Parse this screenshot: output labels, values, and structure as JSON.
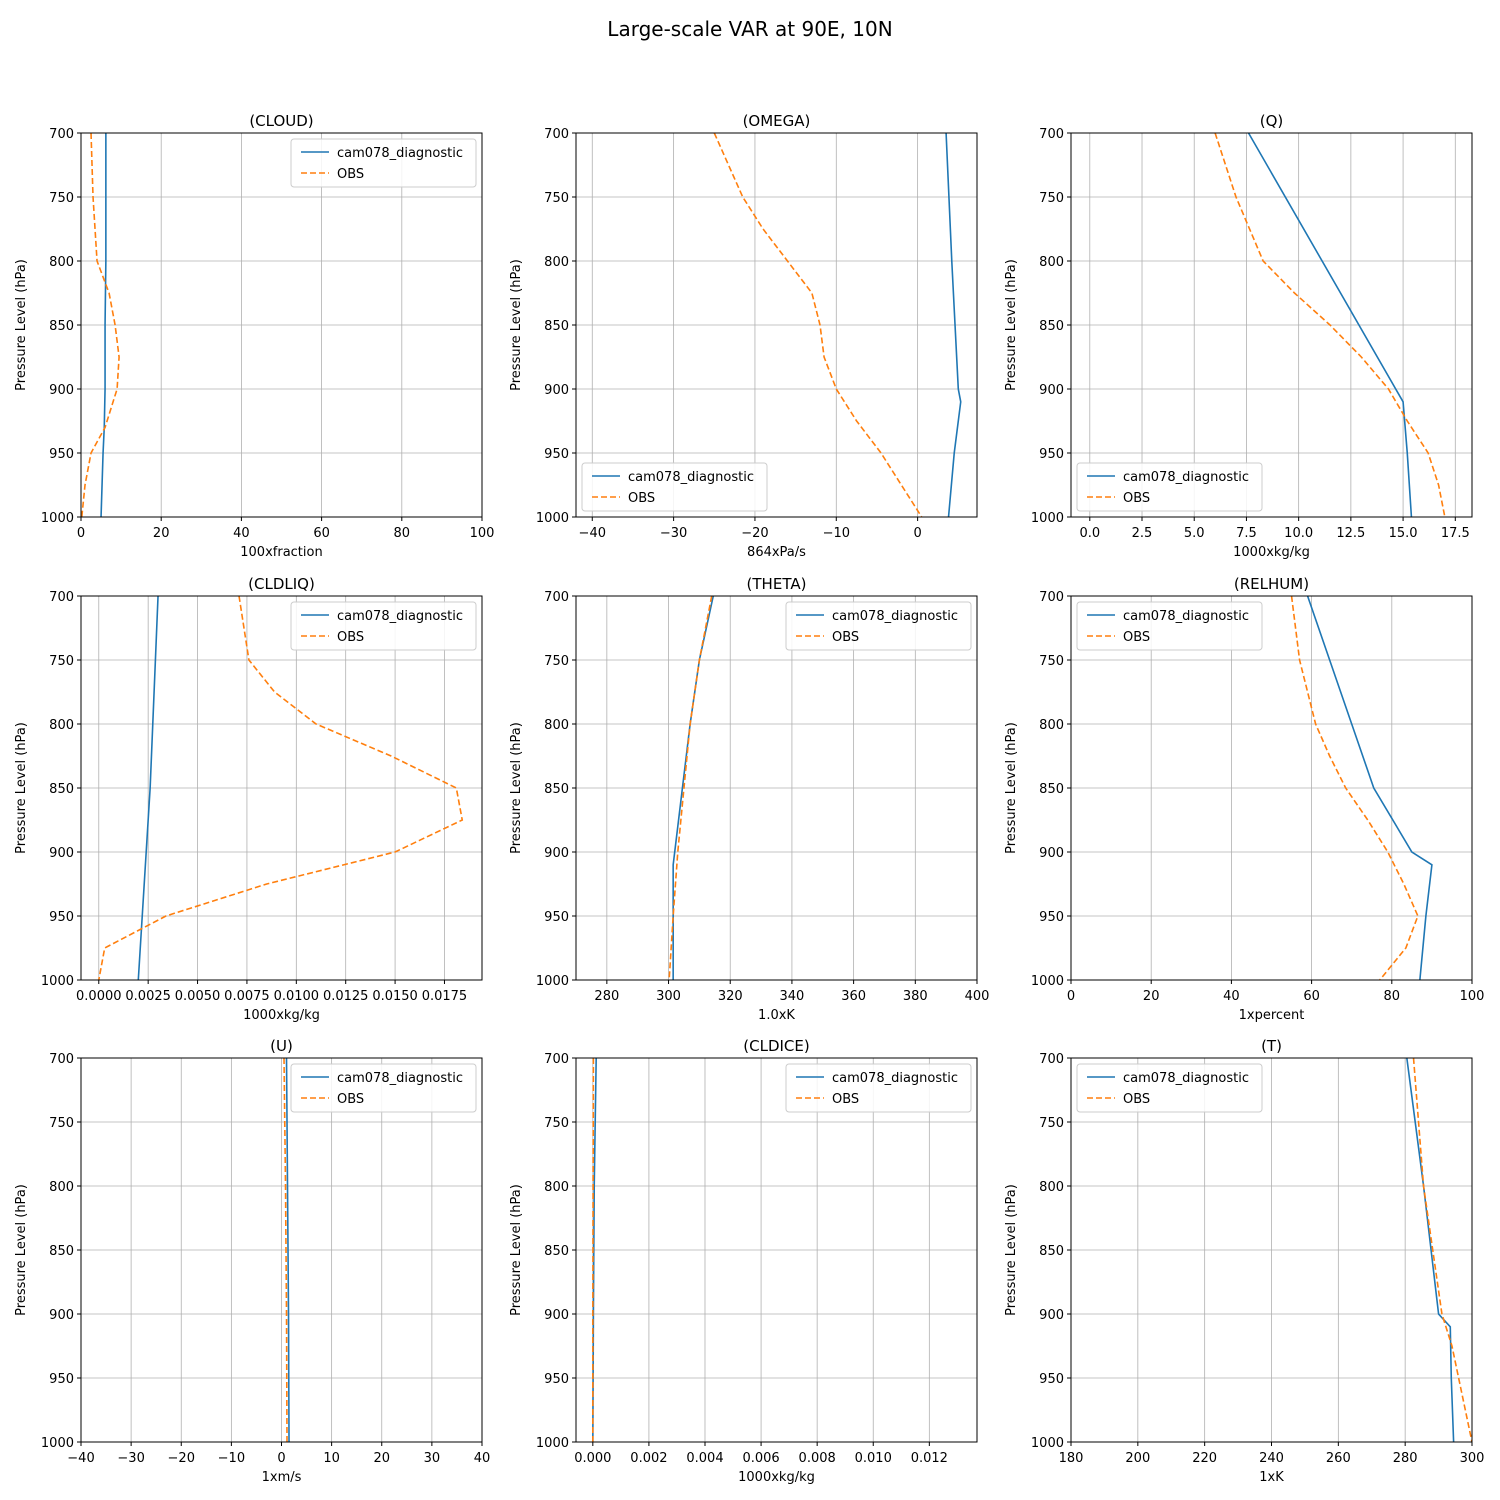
{
  "figure": {
    "title": "Large-scale VAR at 90E, 10N"
  },
  "chart_data": [
    {
      "type": "line",
      "title": "(CLOUD)",
      "xlabel": "100xfraction",
      "ylabel": "Pressure Level (hPa)",
      "xlim": [
        0,
        100
      ],
      "ylim": [
        1000,
        700
      ],
      "xticks": [
        "0",
        "20",
        "40",
        "60",
        "80",
        "100"
      ],
      "yticks": [
        "700",
        "750",
        "800",
        "850",
        "900",
        "950",
        "1000"
      ],
      "grid": true,
      "legend_loc": "upper right",
      "series": [
        {
          "name": "cam078_diagnostic",
          "color": "#1f77b4",
          "style": "solid",
          "points": [
            [
              6.2,
              700
            ],
            [
              6.2,
              750
            ],
            [
              6.2,
              800
            ],
            [
              6.0,
              850
            ],
            [
              6.0,
              900
            ],
            [
              5.8,
              930
            ],
            [
              5.5,
              950
            ],
            [
              5.0,
              1000
            ]
          ]
        },
        {
          "name": "OBS",
          "color": "#ff7f0e",
          "style": "dashed",
          "points": [
            [
              2.5,
              700
            ],
            [
              3.0,
              750
            ],
            [
              4.0,
              800
            ],
            [
              7.0,
              825
            ],
            [
              8.5,
              850
            ],
            [
              9.5,
              875
            ],
            [
              9.0,
              900
            ],
            [
              6.0,
              930
            ],
            [
              2.5,
              950
            ],
            [
              1.0,
              975
            ],
            [
              0.2,
              1000
            ]
          ]
        }
      ]
    },
    {
      "type": "line",
      "title": "(OMEGA)",
      "xlabel": "864xPa/s",
      "ylabel": "Pressure Level (hPa)",
      "xlim": [
        -42,
        7.3
      ],
      "ylim": [
        1000,
        700
      ],
      "xticks": [
        "−40",
        "−30",
        "−20",
        "−10",
        "0"
      ],
      "xtickvals": [
        -40,
        -30,
        -20,
        -10,
        0
      ],
      "yticks": [
        "700",
        "750",
        "800",
        "850",
        "900",
        "950",
        "1000"
      ],
      "grid": true,
      "legend_loc": "lower left",
      "series": [
        {
          "name": "cam078_diagnostic",
          "color": "#1f77b4",
          "style": "solid",
          "points": [
            [
              3.5,
              700
            ],
            [
              4.2,
              800
            ],
            [
              5.0,
              900
            ],
            [
              5.3,
              910
            ],
            [
              4.5,
              950
            ],
            [
              3.8,
              1000
            ]
          ]
        },
        {
          "name": "OBS",
          "color": "#ff7f0e",
          "style": "dashed",
          "points": [
            [
              -25,
              700
            ],
            [
              -21.5,
              750
            ],
            [
              -19,
              775
            ],
            [
              -16,
              800
            ],
            [
              -13,
              825
            ],
            [
              -12,
              850
            ],
            [
              -11.5,
              875
            ],
            [
              -10,
              900
            ],
            [
              -7.5,
              925
            ],
            [
              -4.5,
              950
            ],
            [
              -2,
              975
            ],
            [
              0.5,
              1000
            ]
          ]
        }
      ]
    },
    {
      "type": "line",
      "title": "(Q)",
      "xlabel": "1000xkg/kg",
      "ylabel": "Pressure Level (hPa)",
      "xlim": [
        -0.9,
        18.3
      ],
      "ylim": [
        1000,
        700
      ],
      "xticks": [
        "0.0",
        "2.5",
        "5.0",
        "7.5",
        "10.0",
        "12.5",
        "15.0",
        "17.5"
      ],
      "xtickvals": [
        0,
        2.5,
        5,
        7.5,
        10,
        12.5,
        15,
        17.5
      ],
      "yticks": [
        "700",
        "750",
        "800",
        "850",
        "900",
        "950",
        "1000"
      ],
      "grid": true,
      "legend_loc": "lower left",
      "series": [
        {
          "name": "cam078_diagnostic",
          "color": "#1f77b4",
          "style": "solid",
          "points": [
            [
              7.6,
              700
            ],
            [
              15.0,
              910
            ],
            [
              15.2,
              950
            ],
            [
              15.4,
              1000
            ]
          ]
        },
        {
          "name": "OBS",
          "color": "#ff7f0e",
          "style": "dashed",
          "points": [
            [
              6.0,
              700
            ],
            [
              7.0,
              750
            ],
            [
              8.3,
              800
            ],
            [
              9.8,
              825
            ],
            [
              11.5,
              850
            ],
            [
              13.0,
              875
            ],
            [
              14.3,
              900
            ],
            [
              15.2,
              925
            ],
            [
              16.2,
              950
            ],
            [
              16.7,
              975
            ],
            [
              17.0,
              1000
            ]
          ]
        }
      ]
    },
    {
      "type": "line",
      "title": "(CLDLIQ)",
      "xlabel": "1000xkg/kg",
      "ylabel": "Pressure Level (hPa)",
      "xlim": [
        -0.0009,
        0.0194
      ],
      "ylim": [
        1000,
        700
      ],
      "xticks": [
        "0.0000",
        "0.0025",
        "0.0050",
        "0.0075",
        "0.0100",
        "0.0125",
        "0.0150",
        "0.0175"
      ],
      "xtickvals": [
        0,
        0.0025,
        0.005,
        0.0075,
        0.01,
        0.0125,
        0.015,
        0.0175
      ],
      "yticks": [
        "700",
        "750",
        "800",
        "850",
        "900",
        "950",
        "1000"
      ],
      "grid": true,
      "legend_loc": "upper right",
      "series": [
        {
          "name": "cam078_diagnostic",
          "color": "#1f77b4",
          "style": "solid",
          "points": [
            [
              0.003,
              700
            ],
            [
              0.0026,
              850
            ],
            [
              0.0024,
              900
            ],
            [
              0.0022,
              950
            ],
            [
              0.002,
              1000
            ]
          ]
        },
        {
          "name": "OBS",
          "color": "#ff7f0e",
          "style": "dashed",
          "points": [
            [
              0.0071,
              700
            ],
            [
              0.0076,
              750
            ],
            [
              0.0089,
              775
            ],
            [
              0.011,
              800
            ],
            [
              0.0148,
              825
            ],
            [
              0.0181,
              850
            ],
            [
              0.0184,
              875
            ],
            [
              0.015,
              900
            ],
            [
              0.0085,
              925
            ],
            [
              0.0034,
              950
            ],
            [
              0.0003,
              975
            ],
            [
              0.0,
              1000
            ]
          ]
        }
      ]
    },
    {
      "type": "line",
      "title": "(THETA)",
      "xlabel": "1.0xK",
      "ylabel": "Pressure Level (hPa)",
      "xlim": [
        270,
        400
      ],
      "ylim": [
        1000,
        700
      ],
      "xticks": [
        "280",
        "300",
        "320",
        "340",
        "360",
        "380",
        "400"
      ],
      "xtickvals": [
        280,
        300,
        320,
        340,
        360,
        380,
        400
      ],
      "yticks": [
        "700",
        "750",
        "800",
        "850",
        "900",
        "950",
        "1000"
      ],
      "grid": true,
      "legend_loc": "upper right",
      "series": [
        {
          "name": "cam078_diagnostic",
          "color": "#1f77b4",
          "style": "solid",
          "points": [
            [
              314.5,
              700
            ],
            [
              310,
              750
            ],
            [
              307,
              800
            ],
            [
              304.5,
              850
            ],
            [
              301.5,
              910
            ],
            [
              301.5,
              950
            ],
            [
              301.5,
              1000
            ]
          ]
        },
        {
          "name": "OBS",
          "color": "#ff7f0e",
          "style": "dashed",
          "points": [
            [
              314,
              700
            ],
            [
              310,
              750
            ],
            [
              307,
              800
            ],
            [
              305,
              850
            ],
            [
              303,
              900
            ],
            [
              301.5,
              950
            ],
            [
              300.2,
              1000
            ]
          ]
        }
      ]
    },
    {
      "type": "line",
      "title": "(RELHUM)",
      "xlabel": "1xpercent",
      "ylabel": "Pressure Level (hPa)",
      "xlim": [
        0,
        100
      ],
      "ylim": [
        1000,
        700
      ],
      "xticks": [
        "0",
        "20",
        "40",
        "60",
        "80",
        "100"
      ],
      "xtickvals": [
        0,
        20,
        40,
        60,
        80,
        100
      ],
      "yticks": [
        "700",
        "750",
        "800",
        "850",
        "900",
        "950",
        "1000"
      ],
      "grid": true,
      "legend_loc": "upper left",
      "series": [
        {
          "name": "cam078_diagnostic",
          "color": "#1f77b4",
          "style": "solid",
          "points": [
            [
              59,
              700
            ],
            [
              64.5,
              750
            ],
            [
              70,
              800
            ],
            [
              75.5,
              850
            ],
            [
              85,
              900
            ],
            [
              90,
              910
            ],
            [
              88.5,
              950
            ],
            [
              87,
              1000
            ]
          ]
        },
        {
          "name": "OBS",
          "color": "#ff7f0e",
          "style": "dashed",
          "points": [
            [
              55,
              700
            ],
            [
              57,
              750
            ],
            [
              59,
              775
            ],
            [
              61,
              800
            ],
            [
              64.5,
              825
            ],
            [
              68.5,
              850
            ],
            [
              74,
              875
            ],
            [
              79,
              900
            ],
            [
              83,
              925
            ],
            [
              86.5,
              950
            ],
            [
              83.5,
              975
            ],
            [
              77,
              1000
            ]
          ]
        }
      ]
    },
    {
      "type": "line",
      "title": "(U)",
      "xlabel": "1xm/s",
      "ylabel": "Pressure Level (hPa)",
      "xlim": [
        -40,
        40
      ],
      "ylim": [
        1000,
        700
      ],
      "xticks": [
        "−40",
        "−30",
        "−20",
        "−10",
        "0",
        "10",
        "20",
        "30",
        "40"
      ],
      "xtickvals": [
        -40,
        -30,
        -20,
        -10,
        0,
        10,
        20,
        30,
        40
      ],
      "yticks": [
        "700",
        "750",
        "800",
        "850",
        "900",
        "950",
        "1000"
      ],
      "grid": true,
      "legend_loc": "upper right",
      "series": [
        {
          "name": "cam078_diagnostic",
          "color": "#1f77b4",
          "style": "solid",
          "points": [
            [
              1.0,
              700
            ],
            [
              1.2,
              800
            ],
            [
              1.4,
              900
            ],
            [
              1.5,
              1000
            ]
          ]
        },
        {
          "name": "OBS",
          "color": "#ff7f0e",
          "style": "dashed",
          "points": [
            [
              0.5,
              700
            ],
            [
              0.8,
              800
            ],
            [
              1.0,
              900
            ],
            [
              1.1,
              1000
            ]
          ]
        }
      ]
    },
    {
      "type": "line",
      "title": "(CLDICE)",
      "xlabel": "1000xkg/kg",
      "ylabel": "Pressure Level (hPa)",
      "xlim": [
        -0.0006,
        0.0137
      ],
      "ylim": [
        1000,
        700
      ],
      "xticks": [
        "0.000",
        "0.002",
        "0.004",
        "0.006",
        "0.008",
        "0.010",
        "0.012"
      ],
      "xtickvals": [
        0,
        0.002,
        0.004,
        0.006,
        0.008,
        0.01,
        0.012
      ],
      "yticks": [
        "700",
        "750",
        "800",
        "850",
        "900",
        "950",
        "1000"
      ],
      "grid": true,
      "legend_loc": "upper right",
      "series": [
        {
          "name": "cam078_diagnostic",
          "color": "#1f77b4",
          "style": "solid",
          "points": [
            [
              0.00012,
              700
            ],
            [
              5e-05,
              800
            ],
            [
              2e-05,
              900
            ],
            [
              0.0,
              1000
            ]
          ]
        },
        {
          "name": "OBS",
          "color": "#ff7f0e",
          "style": "dashed",
          "points": [
            [
              2e-05,
              700
            ],
            [
              1e-05,
              800
            ],
            [
              0.0,
              900
            ],
            [
              0.0,
              1000
            ]
          ]
        }
      ]
    },
    {
      "type": "line",
      "title": "(T)",
      "xlabel": "1xK",
      "ylabel": "Pressure Level (hPa)",
      "xlim": [
        180,
        300
      ],
      "ylim": [
        1000,
        700
      ],
      "xticks": [
        "180",
        "200",
        "220",
        "240",
        "260",
        "280",
        "300"
      ],
      "xtickvals": [
        180,
        200,
        220,
        240,
        260,
        280,
        300
      ],
      "yticks": [
        "700",
        "750",
        "800",
        "850",
        "900",
        "950",
        "1000"
      ],
      "grid": true,
      "legend_loc": "upper left",
      "series": [
        {
          "name": "cam078_diagnostic",
          "color": "#1f77b4",
          "style": "solid",
          "points": [
            [
              280.5,
              700
            ],
            [
              285.5,
              800
            ],
            [
              290,
              900
            ],
            [
              293.5,
              910
            ],
            [
              293.8,
              950
            ],
            [
              294.5,
              1000
            ]
          ]
        },
        {
          "name": "OBS",
          "color": "#ff7f0e",
          "style": "dashed",
          "points": [
            [
              282.5,
              700
            ],
            [
              285.5,
              800
            ],
            [
              291,
              900
            ],
            [
              294,
              925
            ],
            [
              296,
              950
            ],
            [
              298,
              975
            ],
            [
              300,
              1000
            ]
          ]
        }
      ]
    }
  ]
}
